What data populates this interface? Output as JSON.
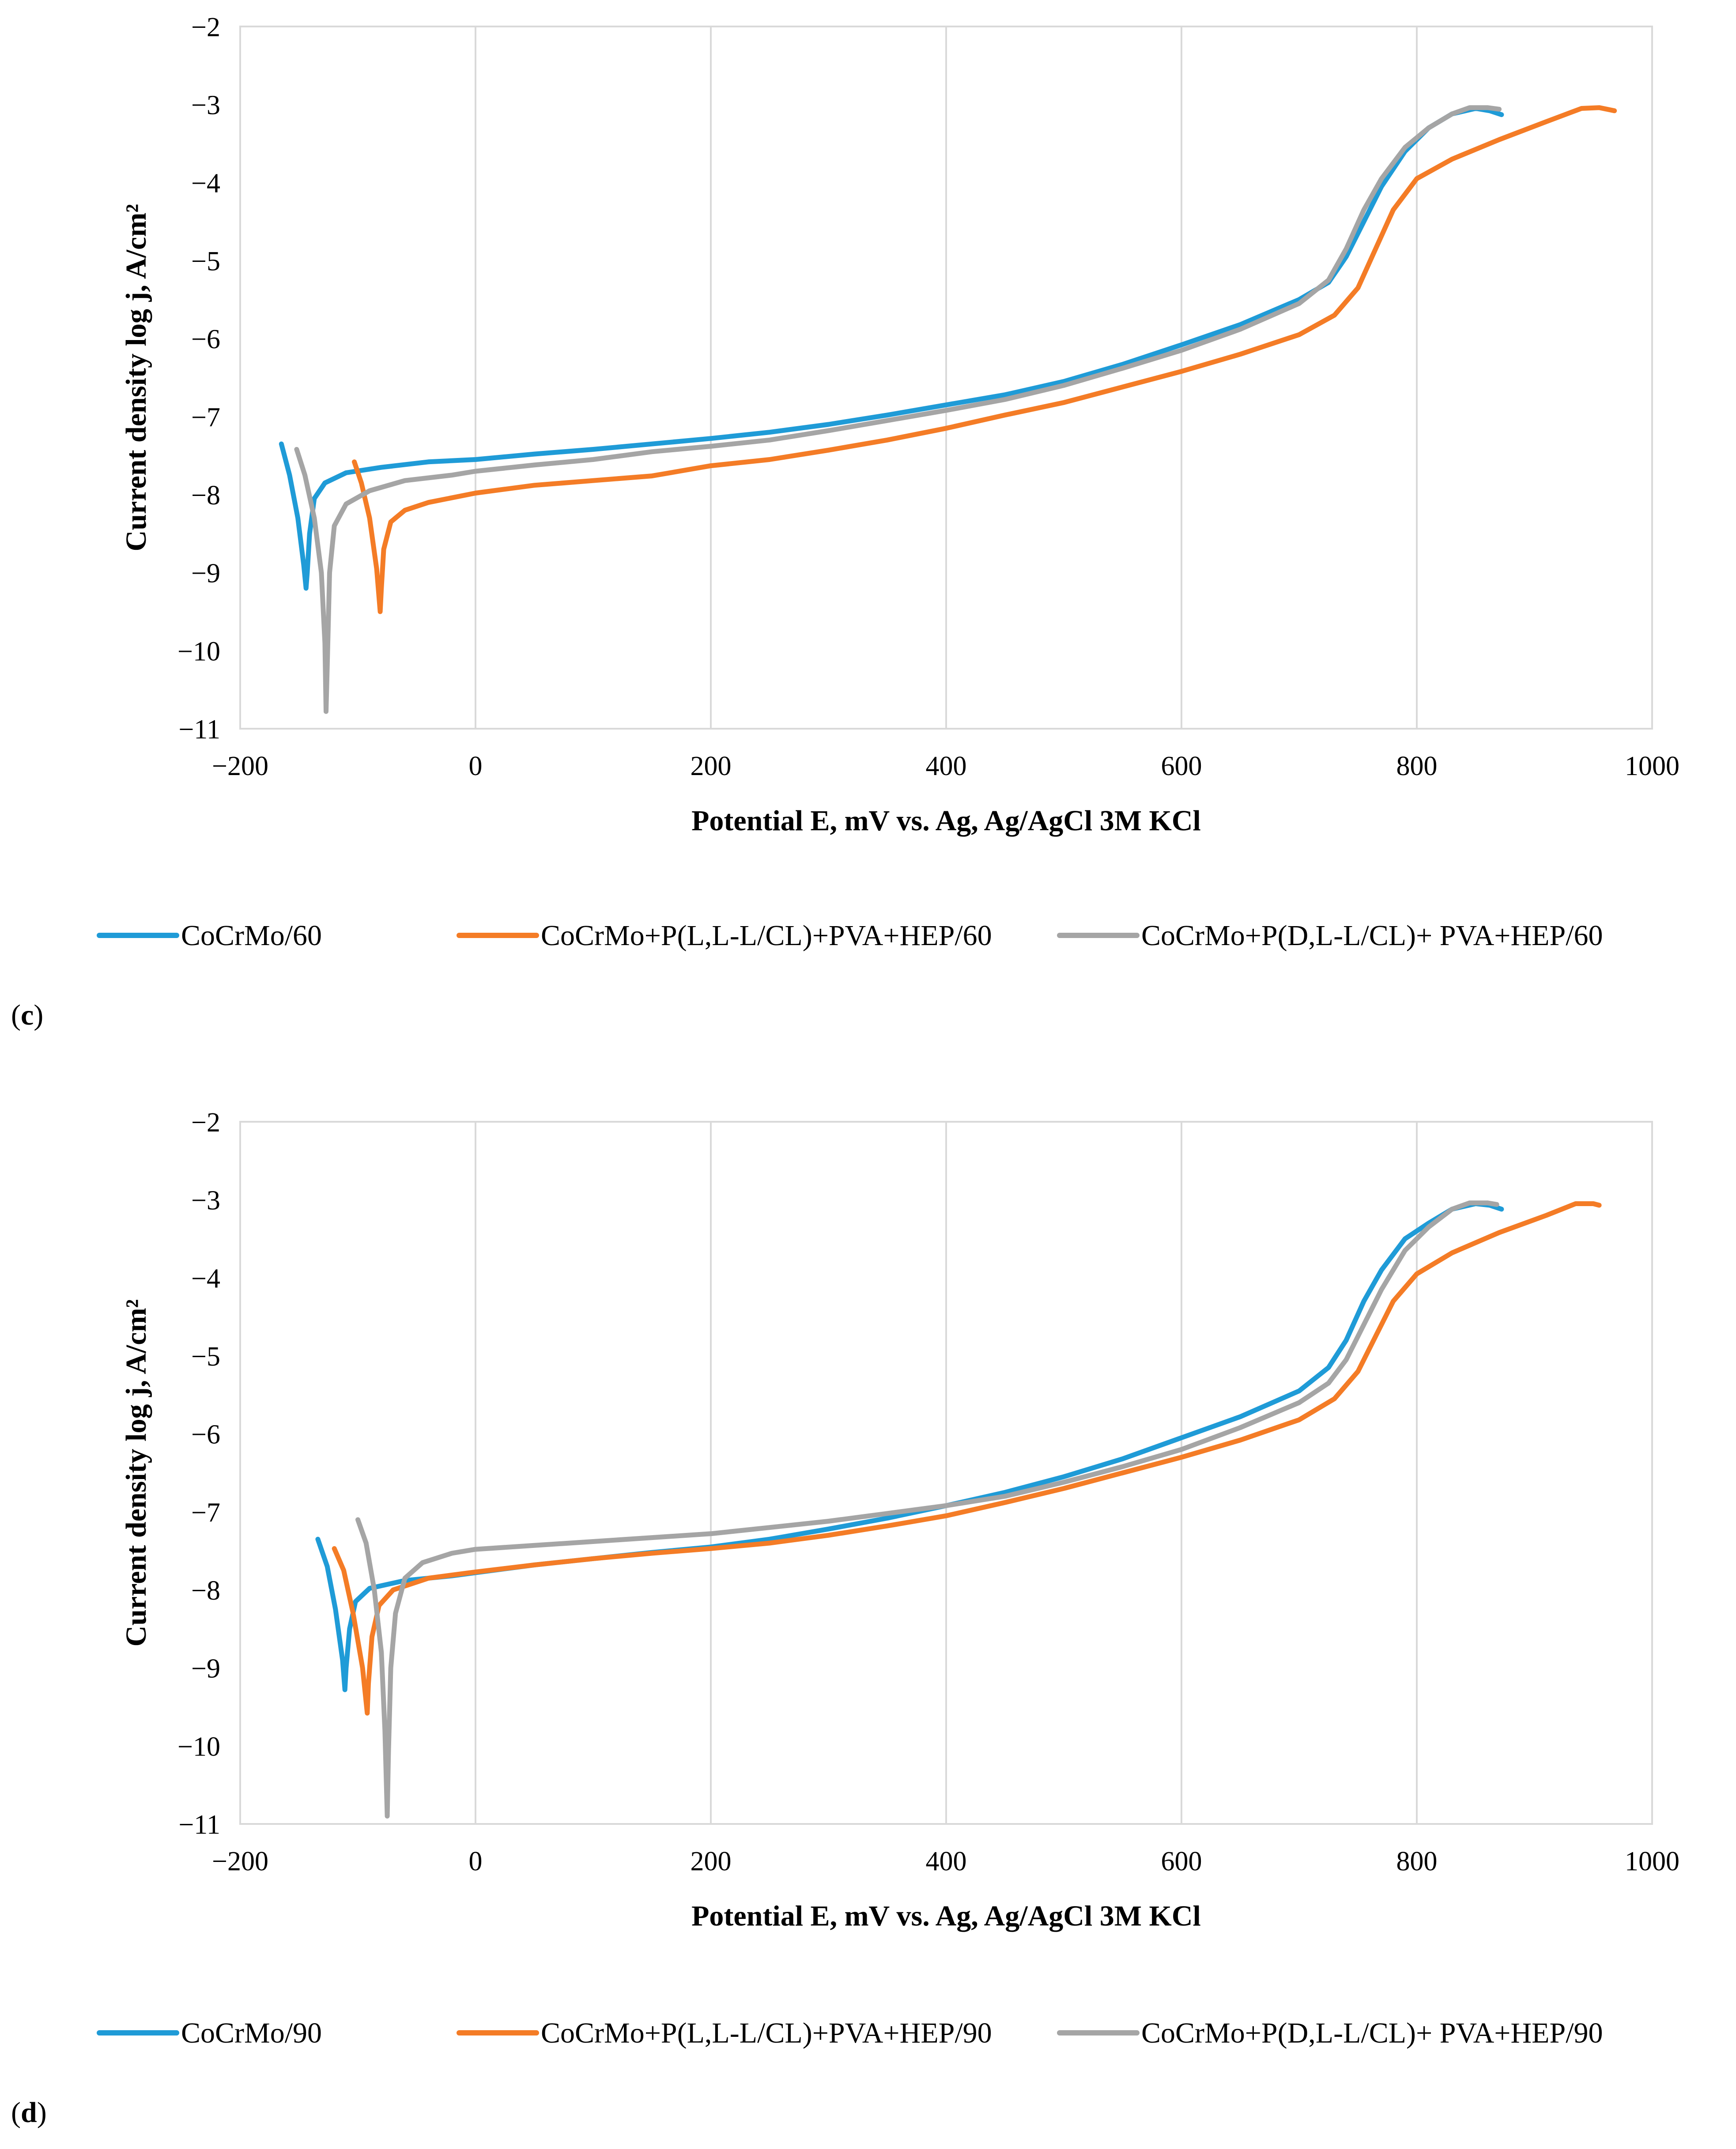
{
  "chart_data": [
    {
      "panel": "c",
      "type": "line",
      "xlabel": "Potential E, mV vs. Ag, Ag/AgCl 3M KCl",
      "ylabel": "Current density log j, A/cm²",
      "xlim": [
        -200,
        1000
      ],
      "ylim": [
        -11,
        -2
      ],
      "xticks": [
        -200,
        0,
        200,
        400,
        600,
        800,
        1000
      ],
      "yticks": [
        -2,
        -3,
        -4,
        -5,
        -6,
        -7,
        -8,
        -9,
        -10,
        -11
      ],
      "xtick_labels": [
        "−200",
        "0",
        "200",
        "400",
        "600",
        "800",
        "1000"
      ],
      "ytick_labels": [
        "−2",
        "−3",
        "−4",
        "−5",
        "−6",
        "−7",
        "−8",
        "−9",
        "−10",
        "−11"
      ],
      "grid": "vertical",
      "legend_position": "bottom",
      "series": [
        {
          "name": "CoCrMo/60",
          "color": "#1f9bd7",
          "points": [
            [
              -165,
              -7.35
            ],
            [
              -158,
              -7.75
            ],
            [
              -151,
              -8.3
            ],
            [
              -146,
              -8.9
            ],
            [
              -144,
              -9.2
            ],
            [
              -143,
              -9.0
            ],
            [
              -141,
              -8.5
            ],
            [
              -137,
              -8.05
            ],
            [
              -128,
              -7.85
            ],
            [
              -110,
              -7.72
            ],
            [
              -80,
              -7.65
            ],
            [
              -40,
              -7.58
            ],
            [
              0,
              -7.55
            ],
            [
              50,
              -7.48
            ],
            [
              100,
              -7.42
            ],
            [
              150,
              -7.35
            ],
            [
              200,
              -7.28
            ],
            [
              250,
              -7.2
            ],
            [
              300,
              -7.1
            ],
            [
              350,
              -6.98
            ],
            [
              400,
              -6.85
            ],
            [
              450,
              -6.72
            ],
            [
              500,
              -6.55
            ],
            [
              550,
              -6.33
            ],
            [
              600,
              -6.08
            ],
            [
              650,
              -5.82
            ],
            [
              700,
              -5.5
            ],
            [
              725,
              -5.28
            ],
            [
              740,
              -4.95
            ],
            [
              755,
              -4.5
            ],
            [
              770,
              -4.05
            ],
            [
              790,
              -3.6
            ],
            [
              810,
              -3.3
            ],
            [
              830,
              -3.12
            ],
            [
              850,
              -3.05
            ],
            [
              862,
              -3.08
            ],
            [
              872,
              -3.13
            ]
          ]
        },
        {
          "name": "CoCrMo+P(L,L-L/CL)+PVA+HEP/60",
          "color": "#f47c26",
          "points": [
            [
              -103,
              -7.58
            ],
            [
              -97,
              -7.85
            ],
            [
              -90,
              -8.3
            ],
            [
              -84,
              -8.95
            ],
            [
              -81,
              -9.5
            ],
            [
              -80,
              -9.2
            ],
            [
              -78,
              -8.7
            ],
            [
              -72,
              -8.35
            ],
            [
              -60,
              -8.2
            ],
            [
              -40,
              -8.1
            ],
            [
              0,
              -7.98
            ],
            [
              50,
              -7.88
            ],
            [
              100,
              -7.82
            ],
            [
              150,
              -7.76
            ],
            [
              200,
              -7.63
            ],
            [
              250,
              -7.55
            ],
            [
              300,
              -7.43
            ],
            [
              350,
              -7.3
            ],
            [
              400,
              -7.15
            ],
            [
              450,
              -6.98
            ],
            [
              500,
              -6.82
            ],
            [
              550,
              -6.62
            ],
            [
              600,
              -6.42
            ],
            [
              650,
              -6.2
            ],
            [
              700,
              -5.95
            ],
            [
              730,
              -5.7
            ],
            [
              750,
              -5.35
            ],
            [
              765,
              -4.85
            ],
            [
              780,
              -4.35
            ],
            [
              800,
              -3.95
            ],
            [
              830,
              -3.7
            ],
            [
              870,
              -3.45
            ],
            [
              910,
              -3.22
            ],
            [
              940,
              -3.05
            ],
            [
              955,
              -3.04
            ],
            [
              968,
              -3.08
            ]
          ]
        },
        {
          "name": "CoCrMo+P(D,L-L/CL)+ PVA+HEP/60",
          "color": "#a5a5a5",
          "points": [
            [
              -152,
              -7.42
            ],
            [
              -145,
              -7.75
            ],
            [
              -137,
              -8.3
            ],
            [
              -131,
              -9.0
            ],
            [
              -128,
              -9.9
            ],
            [
              -127,
              -10.78
            ],
            [
              -126,
              -10.2
            ],
            [
              -124,
              -9.0
            ],
            [
              -120,
              -8.4
            ],
            [
              -110,
              -8.12
            ],
            [
              -90,
              -7.95
            ],
            [
              -60,
              -7.82
            ],
            [
              -20,
              -7.75
            ],
            [
              0,
              -7.7
            ],
            [
              50,
              -7.62
            ],
            [
              100,
              -7.55
            ],
            [
              150,
              -7.45
            ],
            [
              200,
              -7.38
            ],
            [
              250,
              -7.3
            ],
            [
              300,
              -7.18
            ],
            [
              350,
              -7.05
            ],
            [
              400,
              -6.92
            ],
            [
              450,
              -6.78
            ],
            [
              500,
              -6.6
            ],
            [
              550,
              -6.38
            ],
            [
              600,
              -6.15
            ],
            [
              650,
              -5.88
            ],
            [
              700,
              -5.55
            ],
            [
              725,
              -5.25
            ],
            [
              740,
              -4.85
            ],
            [
              755,
              -4.35
            ],
            [
              770,
              -3.95
            ],
            [
              790,
              -3.55
            ],
            [
              810,
              -3.3
            ],
            [
              830,
              -3.12
            ],
            [
              845,
              -3.04
            ],
            [
              860,
              -3.04
            ],
            [
              870,
              -3.06
            ]
          ]
        }
      ]
    },
    {
      "panel": "d",
      "type": "line",
      "xlabel": "Potential E, mV vs. Ag, Ag/AgCl 3M KCl",
      "ylabel": "Current density log j, A/cm²",
      "xlim": [
        -200,
        1000
      ],
      "ylim": [
        -11,
        -2
      ],
      "xticks": [
        -200,
        0,
        200,
        400,
        600,
        800,
        1000
      ],
      "yticks": [
        -2,
        -3,
        -4,
        -5,
        -6,
        -7,
        -8,
        -9,
        -10,
        -11
      ],
      "xtick_labels": [
        "−200",
        "0",
        "200",
        "400",
        "600",
        "800",
        "1000"
      ],
      "ytick_labels": [
        "−2",
        "−3",
        "−4",
        "−5",
        "−6",
        "−7",
        "−8",
        "−9",
        "−10",
        "−11"
      ],
      "grid": "vertical",
      "legend_position": "bottom",
      "series": [
        {
          "name": "CoCrMo/90",
          "color": "#1f9bd7",
          "points": [
            [
              -134,
              -7.35
            ],
            [
              -126,
              -7.7
            ],
            [
              -119,
              -8.25
            ],
            [
              -113,
              -8.9
            ],
            [
              -111,
              -9.28
            ],
            [
              -110,
              -9.0
            ],
            [
              -107,
              -8.5
            ],
            [
              -102,
              -8.15
            ],
            [
              -90,
              -7.98
            ],
            [
              -60,
              -7.88
            ],
            [
              -20,
              -7.82
            ],
            [
              0,
              -7.78
            ],
            [
              50,
              -7.68
            ],
            [
              100,
              -7.6
            ],
            [
              150,
              -7.52
            ],
            [
              200,
              -7.45
            ],
            [
              250,
              -7.35
            ],
            [
              300,
              -7.22
            ],
            [
              350,
              -7.08
            ],
            [
              400,
              -6.92
            ],
            [
              450,
              -6.75
            ],
            [
              500,
              -6.55
            ],
            [
              550,
              -6.32
            ],
            [
              600,
              -6.05
            ],
            [
              650,
              -5.78
            ],
            [
              700,
              -5.45
            ],
            [
              725,
              -5.15
            ],
            [
              740,
              -4.8
            ],
            [
              755,
              -4.3
            ],
            [
              770,
              -3.9
            ],
            [
              790,
              -3.5
            ],
            [
              810,
              -3.3
            ],
            [
              830,
              -3.12
            ],
            [
              850,
              -3.05
            ],
            [
              862,
              -3.07
            ],
            [
              872,
              -3.12
            ]
          ]
        },
        {
          "name": "CoCrMo+P(L,L-L/CL)+PVA+HEP/90",
          "color": "#f47c26",
          "points": [
            [
              -120,
              -7.47
            ],
            [
              -112,
              -7.75
            ],
            [
              -104,
              -8.3
            ],
            [
              -96,
              -9.0
            ],
            [
              -92,
              -9.58
            ],
            [
              -91,
              -9.2
            ],
            [
              -88,
              -8.6
            ],
            [
              -82,
              -8.2
            ],
            [
              -70,
              -8.0
            ],
            [
              -40,
              -7.85
            ],
            [
              0,
              -7.77
            ],
            [
              50,
              -7.68
            ],
            [
              100,
              -7.6
            ],
            [
              150,
              -7.53
            ],
            [
              200,
              -7.47
            ],
            [
              250,
              -7.4
            ],
            [
              300,
              -7.3
            ],
            [
              350,
              -7.18
            ],
            [
              400,
              -7.05
            ],
            [
              450,
              -6.88
            ],
            [
              500,
              -6.7
            ],
            [
              550,
              -6.5
            ],
            [
              600,
              -6.3
            ],
            [
              650,
              -6.08
            ],
            [
              700,
              -5.82
            ],
            [
              730,
              -5.55
            ],
            [
              750,
              -5.2
            ],
            [
              765,
              -4.75
            ],
            [
              780,
              -4.3
            ],
            [
              800,
              -3.95
            ],
            [
              830,
              -3.68
            ],
            [
              870,
              -3.42
            ],
            [
              910,
              -3.2
            ],
            [
              935,
              -3.05
            ],
            [
              950,
              -3.05
            ],
            [
              955,
              -3.07
            ]
          ]
        },
        {
          "name": "CoCrMo+P(D,L-L/CL)+ PVA+HEP/90",
          "color": "#a5a5a5",
          "points": [
            [
              -100,
              -7.1
            ],
            [
              -93,
              -7.4
            ],
            [
              -86,
              -8.0
            ],
            [
              -80,
              -8.8
            ],
            [
              -77,
              -9.8
            ],
            [
              -75,
              -10.9
            ],
            [
              -74,
              -10.1
            ],
            [
              -72,
              -9.0
            ],
            [
              -68,
              -8.3
            ],
            [
              -60,
              -7.85
            ],
            [
              -45,
              -7.65
            ],
            [
              -20,
              -7.53
            ],
            [
              0,
              -7.48
            ],
            [
              50,
              -7.43
            ],
            [
              100,
              -7.38
            ],
            [
              150,
              -7.33
            ],
            [
              200,
              -7.28
            ],
            [
              250,
              -7.2
            ],
            [
              300,
              -7.12
            ],
            [
              350,
              -7.02
            ],
            [
              400,
              -6.92
            ],
            [
              450,
              -6.8
            ],
            [
              500,
              -6.62
            ],
            [
              550,
              -6.42
            ],
            [
              600,
              -6.2
            ],
            [
              650,
              -5.92
            ],
            [
              700,
              -5.6
            ],
            [
              725,
              -5.35
            ],
            [
              740,
              -5.05
            ],
            [
              755,
              -4.6
            ],
            [
              770,
              -4.15
            ],
            [
              790,
              -3.65
            ],
            [
              810,
              -3.35
            ],
            [
              830,
              -3.12
            ],
            [
              845,
              -3.04
            ],
            [
              860,
              -3.04
            ],
            [
              868,
              -3.06
            ]
          ]
        }
      ]
    }
  ]
}
